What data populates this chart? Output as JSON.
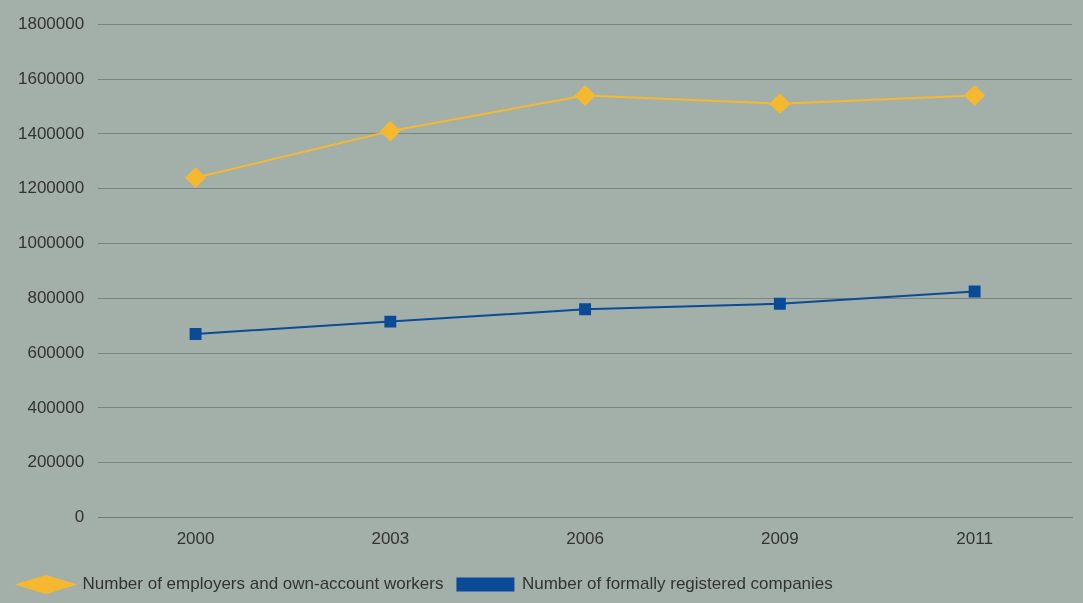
{
  "chart_data": {
    "type": "line",
    "categories": [
      "2000",
      "2003",
      "2006",
      "2009",
      "2011"
    ],
    "series": [
      {
        "name": "Number of employers and own-account workers",
        "color": "#f5b82e",
        "marker": "diamond",
        "values": [
          1240000,
          1410000,
          1540000,
          1510000,
          1540000
        ]
      },
      {
        "name": "Number of formally registered companies",
        "color": "#0a4a96",
        "marker": "square",
        "values": [
          670000,
          715000,
          760000,
          780000,
          825000
        ]
      }
    ],
    "ylim": [
      0,
      1800000
    ],
    "yticks": [
      0,
      200000,
      400000,
      600000,
      800000,
      1000000,
      1200000,
      1400000,
      1600000,
      1800000
    ],
    "grid": "y",
    "legend": "bottom",
    "line_style": "solid"
  }
}
